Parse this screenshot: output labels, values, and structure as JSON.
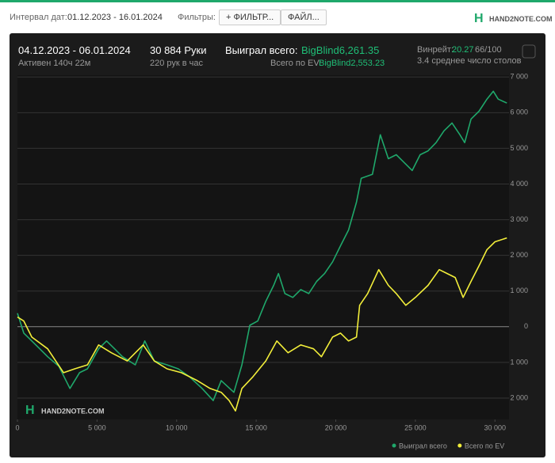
{
  "toolbar": {
    "date_label": "Интервал дат:",
    "date_range": "01.12.2023 - 16.01.2024",
    "filters_label": "Фильтры:",
    "filter_button": "+ ФИЛЬТР...",
    "file_button": "ФАЙЛ...",
    "logo": "HAND2NOTE.COM"
  },
  "summary": {
    "period": "04.12.2023 - 06.01.2024",
    "active": "Активен 140ч 22м",
    "hands": "30 884 Руки",
    "rate": "220 рук в час",
    "won_label": "Выиграл всего:",
    "won_value": "BigBlind6,261.35",
    "ev_label": "Всего по EV:",
    "ev_value": "BigBlind2,553.23",
    "winrate_label": "Винрейт:",
    "winrate_value": "20.27",
    "winrate_unit": "66/100",
    "tables": "3.4 среднее число столов"
  },
  "chart_data": {
    "type": "line",
    "watermark": "HAND2NOTE.COM",
    "grid": true,
    "legend": "bottom-right",
    "xlim": [
      0,
      30884
    ],
    "ylim": [
      -2600,
      7050
    ],
    "xticks": [
      0,
      {
        "value": 5000,
        "label": "5 000"
      },
      {
        "value": 10000,
        "label": "10 000"
      },
      {
        "value": 15000,
        "label": "15 000"
      },
      {
        "value": 20000,
        "label": "20 000"
      },
      {
        "value": 25000,
        "label": "25 000"
      },
      {
        "value": 30000,
        "label": "30 000"
      }
    ],
    "yticks": [
      {
        "value": 7000,
        "label": "7 000"
      },
      {
        "value": 6000,
        "label": "6 000"
      },
      {
        "value": 5000,
        "label": "5 000"
      },
      {
        "value": 4000,
        "label": "4 000"
      },
      {
        "value": 3000,
        "label": "3 000"
      },
      {
        "value": 2000,
        "label": "2 000"
      },
      {
        "value": 1000,
        "label": "1 000"
      },
      0,
      {
        "value": -1000,
        "label": "1 000"
      },
      {
        "value": -2000,
        "label": "2 000"
      }
    ],
    "series": [
      {
        "name": "Выиграл всего",
        "color": "#1fa86b",
        "x": [
          0,
          400,
          900,
          1400,
          1900,
          2600,
          3300,
          3900,
          4400,
          5100,
          5600,
          6100,
          6600,
          7400,
          8000,
          8600,
          9400,
          10100,
          10800,
          11600,
          12300,
          12800,
          13600,
          14100,
          14600,
          15100,
          15600,
          16100,
          16400,
          16800,
          17300,
          17800,
          18300,
          18800,
          19300,
          19800,
          20300,
          20800,
          21300,
          21600,
          22300,
          22800,
          23300,
          23800,
          24300,
          24800,
          25300,
          25800,
          26300,
          26800,
          27300,
          27800,
          28100,
          28500,
          29000,
          29500,
          29900,
          30200,
          30750
        ],
        "values": [
          378,
          -180,
          -400,
          -620,
          -840,
          -1110,
          -1730,
          -1290,
          -1180,
          -620,
          -400,
          -620,
          -840,
          -1070,
          -400,
          -960,
          -1070,
          -1180,
          -1400,
          -1730,
          -2070,
          -1510,
          -1840,
          -1070,
          40,
          160,
          710,
          1160,
          1490,
          930,
          820,
          1040,
          930,
          1270,
          1490,
          1820,
          2270,
          2710,
          3490,
          4160,
          4270,
          5380,
          4710,
          4820,
          4600,
          4380,
          4820,
          4930,
          5160,
          5490,
          5710,
          5380,
          5160,
          5820,
          6040,
          6380,
          6600,
          6380,
          6270
        ]
      },
      {
        "name": "Всего по EV",
        "color": "#f2ee3a",
        "x": [
          0,
          400,
          900,
          1900,
          2900,
          3600,
          4400,
          5100,
          5900,
          6900,
          7900,
          8600,
          9400,
          10300,
          11300,
          12100,
          12800,
          13300,
          13700,
          14100,
          14800,
          15600,
          16300,
          17000,
          17800,
          18600,
          19100,
          19800,
          20300,
          20800,
          21300,
          21500,
          22000,
          22700,
          23300,
          23800,
          24400,
          25000,
          25800,
          26500,
          27000,
          27500,
          28000,
          28500,
          29000,
          29500,
          30000,
          30750
        ],
        "values": [
          270,
          160,
          -290,
          -620,
          -1290,
          -1180,
          -1070,
          -510,
          -730,
          -960,
          -510,
          -960,
          -1180,
          -1290,
          -1510,
          -1730,
          -1840,
          -2070,
          -2360,
          -1730,
          -1400,
          -960,
          -400,
          -730,
          -510,
          -620,
          -840,
          -290,
          -180,
          -400,
          -290,
          600,
          930,
          1600,
          1160,
          930,
          600,
          820,
          1160,
          1600,
          1490,
          1380,
          820,
          1270,
          1710,
          2160,
          2380,
          2490
        ]
      }
    ]
  }
}
